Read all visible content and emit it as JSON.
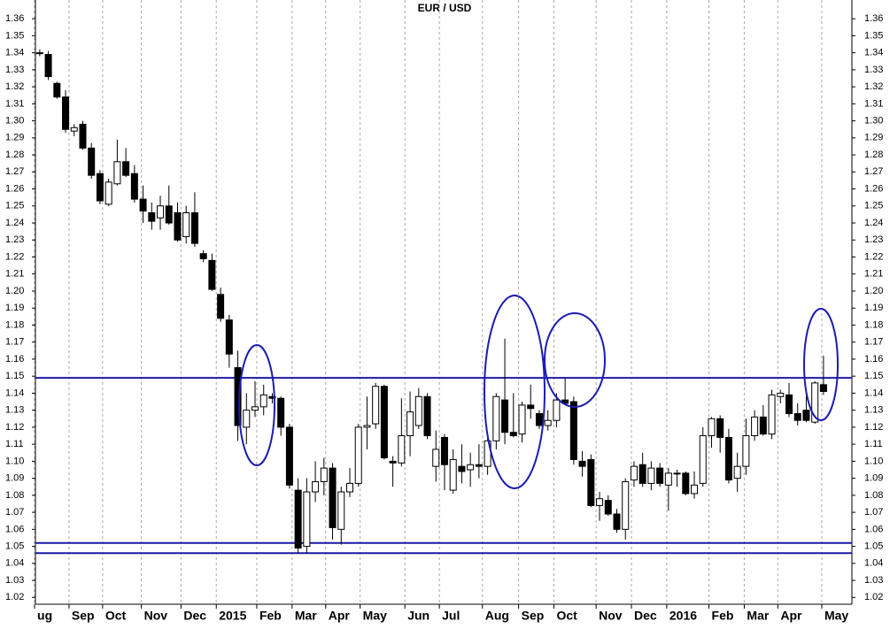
{
  "chart_data": {
    "type": "candlestick",
    "title": "EUR / USD",
    "x": [
      0,
      1,
      2,
      3,
      4,
      5,
      6,
      7,
      8,
      9,
      10,
      11,
      12,
      13,
      14,
      15,
      16,
      17,
      18,
      19,
      20,
      21,
      22,
      23,
      24,
      25,
      26,
      27,
      28,
      29,
      30,
      31,
      32,
      33,
      34,
      35,
      36,
      37,
      38,
      39,
      40,
      41,
      42,
      43,
      44,
      45,
      46,
      47,
      48,
      49,
      50,
      51,
      52,
      53,
      54,
      55,
      56,
      57,
      58,
      59,
      60,
      61,
      62,
      63,
      64,
      65,
      66,
      67,
      68,
      69,
      70,
      71,
      72,
      73,
      74,
      75,
      76,
      77,
      78,
      79,
      80,
      81,
      82,
      83,
      84,
      85,
      86,
      87,
      88,
      89,
      90,
      91
    ],
    "open": [
      1.34,
      1.339,
      1.322,
      1.314,
      1.294,
      1.298,
      1.284,
      1.269,
      1.251,
      1.263,
      1.276,
      1.269,
      1.254,
      1.246,
      1.243,
      1.25,
      1.246,
      1.232,
      1.246,
      1.222,
      1.218,
      1.198,
      1.183,
      1.155,
      1.12,
      1.13,
      1.132,
      1.138,
      1.137,
      1.12,
      1.083,
      1.05,
      1.082,
      1.088,
      1.096,
      1.06,
      1.082,
      1.087,
      1.12,
      1.122,
      1.144,
      1.1,
      1.099,
      1.115,
      1.121,
      1.138,
      1.097,
      1.114,
      1.083,
      1.097,
      1.095,
      1.098,
      1.097,
      1.112,
      1.136,
      1.117,
      1.116,
      1.133,
      1.128,
      1.121,
      1.124,
      1.136,
      1.135,
      1.1,
      1.101,
      1.074,
      1.077,
      1.069,
      1.06,
      1.089,
      1.098,
      1.087,
      1.096,
      1.086,
      1.093,
      1.093,
      1.081,
      1.087,
      1.115,
      1.125,
      1.114,
      1.09,
      1.097,
      1.115,
      1.126,
      1.116,
      1.138,
      1.139,
      1.128,
      1.13,
      1.123,
      1.145
    ],
    "high": [
      1.342,
      1.341,
      1.323,
      1.318,
      1.298,
      1.3,
      1.287,
      1.271,
      1.266,
      1.289,
      1.284,
      1.274,
      1.262,
      1.252,
      1.256,
      1.262,
      1.252,
      1.25,
      1.258,
      1.224,
      1.222,
      1.202,
      1.186,
      1.165,
      1.14,
      1.147,
      1.145,
      1.14,
      1.138,
      1.122,
      1.09,
      1.09,
      1.1,
      1.102,
      1.099,
      1.085,
      1.096,
      1.122,
      1.138,
      1.146,
      1.145,
      1.103,
      1.137,
      1.141,
      1.143,
      1.14,
      1.118,
      1.116,
      1.107,
      1.11,
      1.105,
      1.11,
      1.115,
      1.14,
      1.172,
      1.14,
      1.135,
      1.145,
      1.13,
      1.13,
      1.14,
      1.149,
      1.138,
      1.106,
      1.104,
      1.082,
      1.08,
      1.072,
      1.09,
      1.1,
      1.105,
      1.1,
      1.099,
      1.096,
      1.095,
      1.094,
      1.094,
      1.12,
      1.126,
      1.127,
      1.119,
      1.105,
      1.125,
      1.13,
      1.133,
      1.142,
      1.142,
      1.146,
      1.134,
      1.14,
      1.147,
      1.162
    ],
    "low": [
      1.338,
      1.324,
      1.313,
      1.293,
      1.291,
      1.283,
      1.266,
      1.251,
      1.25,
      1.262,
      1.267,
      1.252,
      1.24,
      1.236,
      1.236,
      1.239,
      1.229,
      1.228,
      1.226,
      1.217,
      1.2,
      1.182,
      1.155,
      1.112,
      1.11,
      1.126,
      1.127,
      1.134,
      1.115,
      1.084,
      1.046,
      1.046,
      1.076,
      1.08,
      1.054,
      1.051,
      1.079,
      1.085,
      1.107,
      1.119,
      1.101,
      1.085,
      1.097,
      1.103,
      1.119,
      1.113,
      1.088,
      1.083,
      1.081,
      1.087,
      1.085,
      1.09,
      1.092,
      1.107,
      1.11,
      1.114,
      1.111,
      1.125,
      1.119,
      1.118,
      1.12,
      1.133,
      1.098,
      1.091,
      1.073,
      1.065,
      1.068,
      1.058,
      1.054,
      1.085,
      1.085,
      1.083,
      1.085,
      1.071,
      1.085,
      1.08,
      1.078,
      1.085,
      1.108,
      1.105,
      1.087,
      1.082,
      1.092,
      1.112,
      1.115,
      1.113,
      1.134,
      1.126,
      1.121,
      1.123,
      1.122,
      1.139
    ],
    "close": [
      1.34,
      1.326,
      1.314,
      1.295,
      1.296,
      1.284,
      1.268,
      1.253,
      1.264,
      1.276,
      1.268,
      1.254,
      1.247,
      1.241,
      1.25,
      1.24,
      1.23,
      1.246,
      1.228,
      1.219,
      1.201,
      1.184,
      1.163,
      1.121,
      1.13,
      1.132,
      1.139,
      1.137,
      1.12,
      1.086,
      1.049,
      1.082,
      1.088,
      1.096,
      1.061,
      1.082,
      1.087,
      1.12,
      1.121,
      1.144,
      1.102,
      1.099,
      1.115,
      1.129,
      1.138,
      1.115,
      1.107,
      1.098,
      1.101,
      1.094,
      1.098,
      1.097,
      1.112,
      1.138,
      1.117,
      1.115,
      1.133,
      1.131,
      1.121,
      1.124,
      1.136,
      1.134,
      1.101,
      1.097,
      1.074,
      1.078,
      1.069,
      1.06,
      1.088,
      1.097,
      1.087,
      1.096,
      1.087,
      1.093,
      1.093,
      1.081,
      1.086,
      1.115,
      1.125,
      1.114,
      1.089,
      1.097,
      1.115,
      1.126,
      1.116,
      1.139,
      1.14,
      1.128,
      1.124,
      1.124,
      1.146,
      1.141
    ],
    "up_color": "#ffffff",
    "down_color": "#000000",
    "xlim": [
      -0.5,
      94.3
    ],
    "xticks": [
      {
        "value": -0.6,
        "label": "ug"
      },
      {
        "value": 3.4,
        "label": "Sep"
      },
      {
        "value": 7.3,
        "label": "Oct"
      },
      {
        "value": 11.8,
        "label": "Nov"
      },
      {
        "value": 16.4,
        "label": "Dec"
      },
      {
        "value": 20.5,
        "label": "2015"
      },
      {
        "value": 25.2,
        "label": "Feb"
      },
      {
        "value": 29.3,
        "label": "Mar"
      },
      {
        "value": 33.2,
        "label": "Apr"
      },
      {
        "value": 37.2,
        "label": "May"
      },
      {
        "value": 42.4,
        "label": "Jun"
      },
      {
        "value": 46.4,
        "label": "Jul"
      },
      {
        "value": 51.4,
        "label": "Aug"
      },
      {
        "value": 55.6,
        "label": "Sep"
      },
      {
        "value": 59.7,
        "label": "Oct"
      },
      {
        "value": 64.6,
        "label": "Nov"
      },
      {
        "value": 68.7,
        "label": "Dec"
      },
      {
        "value": 72.8,
        "label": "2016"
      },
      {
        "value": 77.7,
        "label": "Feb"
      },
      {
        "value": 81.8,
        "label": "Mar"
      },
      {
        "value": 85.7,
        "label": "Apr"
      },
      {
        "value": 90.8,
        "label": "May"
      }
    ],
    "ylim": [
      1.016,
      1.371
    ],
    "yticks": [
      1.02,
      1.03,
      1.04,
      1.05,
      1.06,
      1.07,
      1.08,
      1.09,
      {
        "value": 1.1,
        "label": "1.10"
      },
      1.11,
      1.12,
      1.13,
      1.14,
      1.15,
      1.16,
      1.17,
      1.18,
      1.19,
      {
        "value": 1.2,
        "label": "1.20"
      },
      1.21,
      1.22,
      1.23,
      1.24,
      1.25,
      1.26,
      1.27,
      1.28,
      1.29,
      {
        "value": 1.3,
        "label": "1.30"
      },
      1.31,
      1.32,
      1.33,
      1.34,
      1.35,
      1.36
    ],
    "hlines": [
      1.149,
      1.052,
      1.046
    ],
    "hline_color": "#1a1aa8",
    "grid": true
  }
}
